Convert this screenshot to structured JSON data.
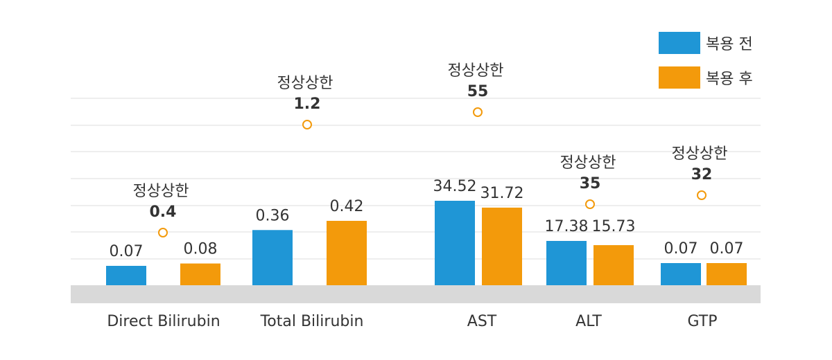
{
  "chart_data": {
    "type": "bar",
    "categories": [
      "Direct Bilirubin",
      "Total Bilirubin",
      "AST",
      "ALT",
      "GTP"
    ],
    "series": [
      {
        "name": "복용 전",
        "values": [
          0.07,
          0.36,
          34.52,
          17.38,
          0.07
        ],
        "labels": [
          "0.07",
          "0.36",
          "34.52",
          "17.38",
          "0.07"
        ],
        "color": "#1f96d6"
      },
      {
        "name": "복용 후",
        "values": [
          0.08,
          0.42,
          31.72,
          15.73,
          0.07
        ],
        "labels": [
          "0.08",
          "0.42",
          "31.72",
          "15.73",
          "0.07"
        ],
        "color": "#f39a0b"
      }
    ],
    "reference": {
      "label": "정상상한",
      "values": [
        0.4,
        1.2,
        55,
        35,
        32
      ],
      "value_labels": [
        "0.4",
        "1.2",
        "55",
        "35",
        "32"
      ],
      "marker_color": "#f39a0b"
    },
    "legend_position": "top-right",
    "grid": true,
    "axis_band_color": "#d9d9d9",
    "gridline_color": "#e3e3e3"
  }
}
